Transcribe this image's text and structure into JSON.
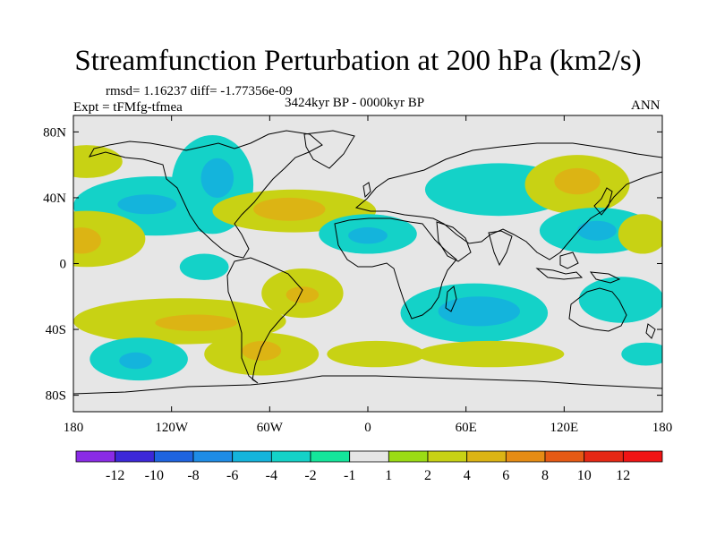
{
  "chart_data": {
    "type": "contour_map",
    "title": "Streamfunction Perturbation at 200 hPa (km2/s)",
    "stats_line": "rmsd= 1.16237 diff= -1.77356e-09",
    "experiment_label": "Expt = tFMfg-tfmea",
    "period_label": "3424kyr BP - 0000kyr BP",
    "season_label": "ANN",
    "x_axis": {
      "lim": [
        -180,
        180
      ],
      "ticks": [
        -180,
        -120,
        -60,
        0,
        60,
        120,
        180
      ],
      "tick_labels": [
        "180",
        "120W",
        "60W",
        "0",
        "60E",
        "120E",
        "180"
      ]
    },
    "y_axis": {
      "lim": [
        -90,
        90
      ],
      "ticks": [
        80,
        40,
        0,
        -40,
        -80
      ],
      "tick_labels": [
        "80N",
        "40N",
        "0",
        "40S",
        "80S"
      ]
    },
    "colorbar": {
      "levels": [
        -12,
        -10,
        -8,
        -6,
        -4,
        -2,
        -1,
        1,
        2,
        4,
        6,
        8,
        10,
        12
      ],
      "labels": [
        "-12",
        "-10",
        "-8",
        "-6",
        "-4",
        "-2",
        "-1",
        "1",
        "2",
        "4",
        "6",
        "8",
        "10",
        "12"
      ],
      "colors": [
        "#8a2be6",
        "#3c28d8",
        "#1e64e0",
        "#1e8ce6",
        "#14b4dc",
        "#14d2c8",
        "#14e69b",
        "#e6e6e6",
        "#9bdc14",
        "#c8d214",
        "#dcb414",
        "#e68c14",
        "#e65a14",
        "#e62814",
        "#f01414"
      ]
    },
    "anomaly_fields": [
      {
        "name": "N Pacific west",
        "center": [
          -172,
          62
        ],
        "extent": [
          22,
          10
        ],
        "level": 2
      },
      {
        "name": "NE Pacific",
        "center": [
          -130,
          35
        ],
        "extent": [
          50,
          18
        ],
        "level": -2
      },
      {
        "name": "NE Pacific core",
        "center": [
          -135,
          36
        ],
        "extent": [
          18,
          6
        ],
        "level": -4
      },
      {
        "name": "Central Pacific",
        "center": [
          -172,
          15
        ],
        "extent": [
          36,
          17
        ],
        "level": 2
      },
      {
        "name": "Central Pacific core",
        "center": [
          -175,
          14
        ],
        "extent": [
          12,
          8
        ],
        "level": 4
      },
      {
        "name": "Equatorial E Pacific",
        "center": [
          -100,
          -2
        ],
        "extent": [
          15,
          8
        ],
        "level": -2
      },
      {
        "name": "North America",
        "center": [
          -95,
          48
        ],
        "extent": [
          25,
          30
        ],
        "level": -2
      },
      {
        "name": "North America core",
        "center": [
          -92,
          52
        ],
        "extent": [
          10,
          12
        ],
        "level": -4
      },
      {
        "name": "North Atlantic",
        "center": [
          -45,
          32
        ],
        "extent": [
          50,
          13
        ],
        "level": 2
      },
      {
        "name": "North Atlantic core",
        "center": [
          -48,
          33
        ],
        "extent": [
          22,
          7
        ],
        "level": 4
      },
      {
        "name": "North Africa",
        "center": [
          0,
          18
        ],
        "extent": [
          30,
          12
        ],
        "level": -2
      },
      {
        "name": "North Africa core",
        "center": [
          0,
          17
        ],
        "extent": [
          12,
          5
        ],
        "level": -4
      },
      {
        "name": "Tropical S Atlantic",
        "center": [
          -40,
          -18
        ],
        "extent": [
          25,
          15
        ],
        "level": 2
      },
      {
        "name": "Tropical S Atlantic core",
        "center": [
          -40,
          -19
        ],
        "extent": [
          10,
          5
        ],
        "level": 4
      },
      {
        "name": "SE Pacific belt",
        "center": [
          -115,
          -35
        ],
        "extent": [
          65,
          14
        ],
        "level": 2
      },
      {
        "name": "SE Pacific core",
        "center": [
          -105,
          -36
        ],
        "extent": [
          25,
          5
        ],
        "level": 4
      },
      {
        "name": "S Pacific high lat",
        "center": [
          -140,
          -58
        ],
        "extent": [
          30,
          13
        ],
        "level": -2
      },
      {
        "name": "S Pacific high lat core",
        "center": [
          -142,
          -59
        ],
        "extent": [
          10,
          5
        ],
        "level": -4
      },
      {
        "name": "Drake Passage",
        "center": [
          -65,
          -55
        ],
        "extent": [
          35,
          13
        ],
        "level": 2
      },
      {
        "name": "Drake Passage core",
        "center": [
          -65,
          -53
        ],
        "extent": [
          12,
          6
        ],
        "level": 4
      },
      {
        "name": "S Atlantic high lat",
        "center": [
          5,
          -55
        ],
        "extent": [
          30,
          8
        ],
        "level": 2
      },
      {
        "name": "Indian Ocean",
        "center": [
          65,
          -30
        ],
        "extent": [
          45,
          18
        ],
        "level": -2
      },
      {
        "name": "Indian Ocean core",
        "center": [
          68,
          -29
        ],
        "extent": [
          25,
          9
        ],
        "level": -4
      },
      {
        "name": "Southern Ocean Indian",
        "center": [
          75,
          -55
        ],
        "extent": [
          45,
          8
        ],
        "level": 2
      },
      {
        "name": "Eurasia",
        "center": [
          80,
          45
        ],
        "extent": [
          45,
          16
        ],
        "level": -2
      },
      {
        "name": "East Asia",
        "center": [
          128,
          48
        ],
        "extent": [
          32,
          18
        ],
        "level": 2
      },
      {
        "name": "East Asia core",
        "center": [
          128,
          50
        ],
        "extent": [
          14,
          8
        ],
        "level": 4
      },
      {
        "name": "W Pacific tropics",
        "center": [
          140,
          20
        ],
        "extent": [
          35,
          14
        ],
        "level": -2
      },
      {
        "name": "W Pacific tropics core",
        "center": [
          140,
          20
        ],
        "extent": [
          12,
          6
        ],
        "level": -4
      },
      {
        "name": "Tropical N Pacific",
        "center": [
          168,
          18
        ],
        "extent": [
          15,
          12
        ],
        "level": 2
      },
      {
        "name": "SW Pacific",
        "center": [
          155,
          -22
        ],
        "extent": [
          26,
          14
        ],
        "level": -2
      },
      {
        "name": "S Pacific high lat east",
        "center": [
          170,
          -55
        ],
        "extent": [
          15,
          7
        ],
        "level": -2
      }
    ]
  }
}
